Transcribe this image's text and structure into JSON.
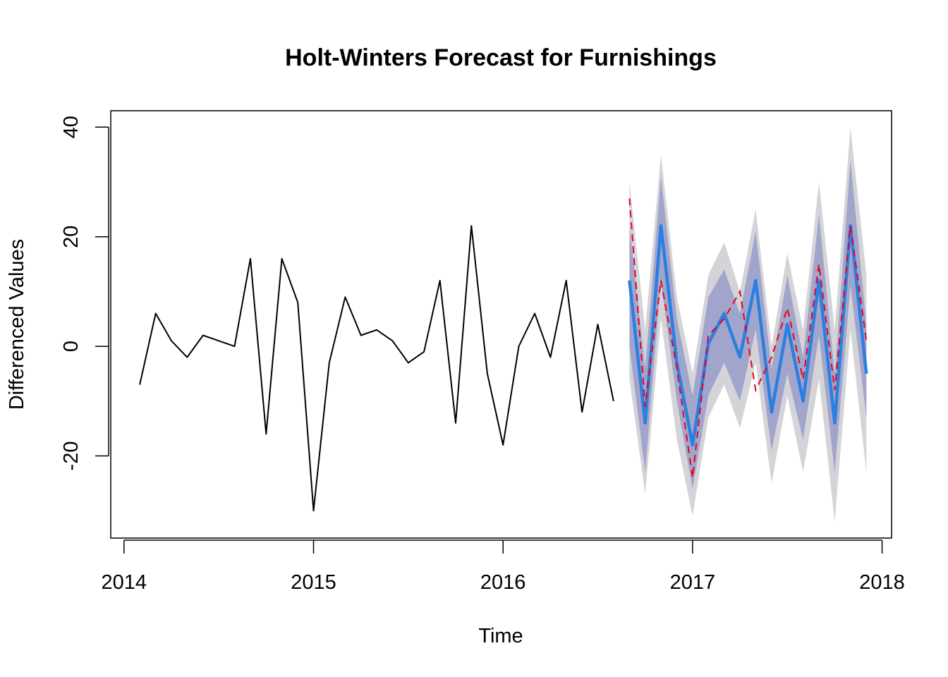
{
  "chart_data": {
    "type": "line",
    "title": "Holt-Winters Forecast for Furnishings",
    "xlabel": "Time",
    "ylabel": "Differenced Values",
    "xlim": [
      2013.93,
      2018.05
    ],
    "ylim": [
      -35,
      43
    ],
    "x_ticks": [
      2014,
      2015,
      2016,
      2017,
      2018
    ],
    "x_tick_labels": [
      "2014",
      "2015",
      "2016",
      "2017",
      "2018"
    ],
    "y_ticks": [
      -20,
      0,
      20,
      40
    ],
    "y_tick_labels": [
      "-20",
      "0",
      "20",
      "40"
    ],
    "grid": false,
    "legend": "none",
    "colors": {
      "observed": "#000000",
      "forecast": "#2a7fe0",
      "actual": "#e8001c",
      "band80": "#a2a5cb",
      "band95": "#d4d4d8"
    },
    "observed": {
      "x": [
        2014.083,
        2014.167,
        2014.25,
        2014.333,
        2014.417,
        2014.5,
        2014.583,
        2014.667,
        2014.75,
        2014.833,
        2014.917,
        2015.0,
        2015.083,
        2015.167,
        2015.25,
        2015.333,
        2015.417,
        2015.5,
        2015.583,
        2015.667,
        2015.75,
        2015.833,
        2015.917,
        2016.0,
        2016.083,
        2016.167,
        2016.25,
        2016.333,
        2016.417,
        2016.5,
        2016.583
      ],
      "y": [
        -7,
        6,
        1,
        -2,
        2,
        1,
        0,
        16,
        -16,
        16,
        8,
        -30,
        -3,
        9,
        2,
        3,
        1,
        -3,
        -1,
        12,
        -14,
        22,
        -5,
        -18,
        0,
        6,
        -2,
        12,
        -12,
        4,
        -10
      ]
    },
    "forecast": {
      "x": [
        2016.667,
        2016.75,
        2016.833,
        2016.917,
        2017.0,
        2017.083,
        2017.167,
        2017.25,
        2017.333,
        2017.417,
        2017.5,
        2017.583,
        2017.667,
        2017.75,
        2017.833,
        2017.917
      ],
      "mean": [
        12,
        -14,
        22,
        -3,
        -18,
        0.5,
        6,
        -2,
        12,
        -12,
        4,
        -10,
        12,
        -14,
        22,
        -5
      ],
      "lo80": [
        0,
        -23,
        12,
        -10,
        -26,
        -9,
        -3,
        -10,
        3,
        -19,
        -5,
        -17,
        2,
        -23,
        11,
        -13
      ],
      "hi80": [
        22,
        -4,
        31,
        5,
        -9,
        9,
        14,
        6,
        21,
        -4,
        13,
        -2,
        24,
        -5,
        34,
        4
      ],
      "lo95": [
        -6,
        -27,
        5,
        -17,
        -31,
        -13,
        -7,
        -15,
        -3,
        -25,
        -9,
        -23,
        -6,
        -32,
        3,
        -23
      ],
      "hi95": [
        30,
        3,
        35,
        9,
        -5,
        13,
        19,
        10,
        25,
        0,
        17,
        3,
        30,
        3,
        40,
        13
      ]
    },
    "actual": {
      "x": [
        2016.667,
        2016.75,
        2016.833,
        2016.917,
        2017.0,
        2017.083,
        2017.167,
        2017.25,
        2017.333,
        2017.417,
        2017.5,
        2017.583,
        2017.667,
        2017.75,
        2017.833,
        2017.917
      ],
      "y": [
        27,
        -11,
        12,
        -4,
        -24,
        2,
        5,
        10,
        -8,
        -2,
        7,
        -6,
        15,
        -8,
        22,
        1
      ]
    }
  }
}
